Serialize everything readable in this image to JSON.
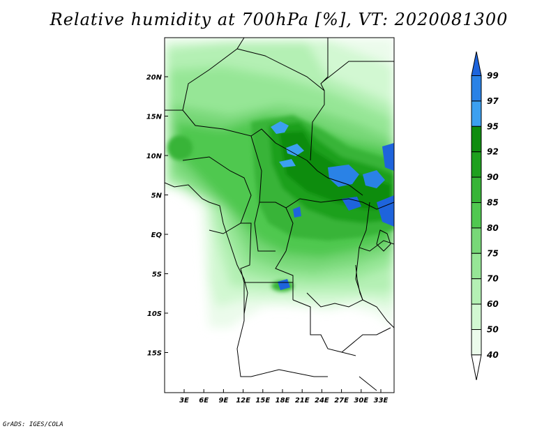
{
  "title": "Relative humidity at 700hPa [%], VT: 2020081300",
  "credit": "GrADS: IGES/COLA",
  "map": {
    "lat_labels": [
      "20N",
      "15N",
      "10N",
      "5N",
      "EQ",
      "5S",
      "10S",
      "15S"
    ],
    "lon_labels": [
      "3E",
      "6E",
      "9E",
      "12E",
      "15E",
      "18E",
      "21E",
      "24E",
      "27E",
      "30E",
      "33E"
    ]
  },
  "colorbar": {
    "labels": [
      "99",
      "97",
      "95",
      "92",
      "90",
      "85",
      "80",
      "75",
      "70",
      "60",
      "50",
      "40"
    ],
    "colors": [
      "#1e64dc",
      "#2a82e6",
      "#3ca0f0",
      "#0f8c0f",
      "#1ea01e",
      "#37b437",
      "#50c850",
      "#78d878",
      "#96e696",
      "#b4f0b4",
      "#d2f8d2",
      "#ebfbeb",
      "#ffffff"
    ]
  }
}
